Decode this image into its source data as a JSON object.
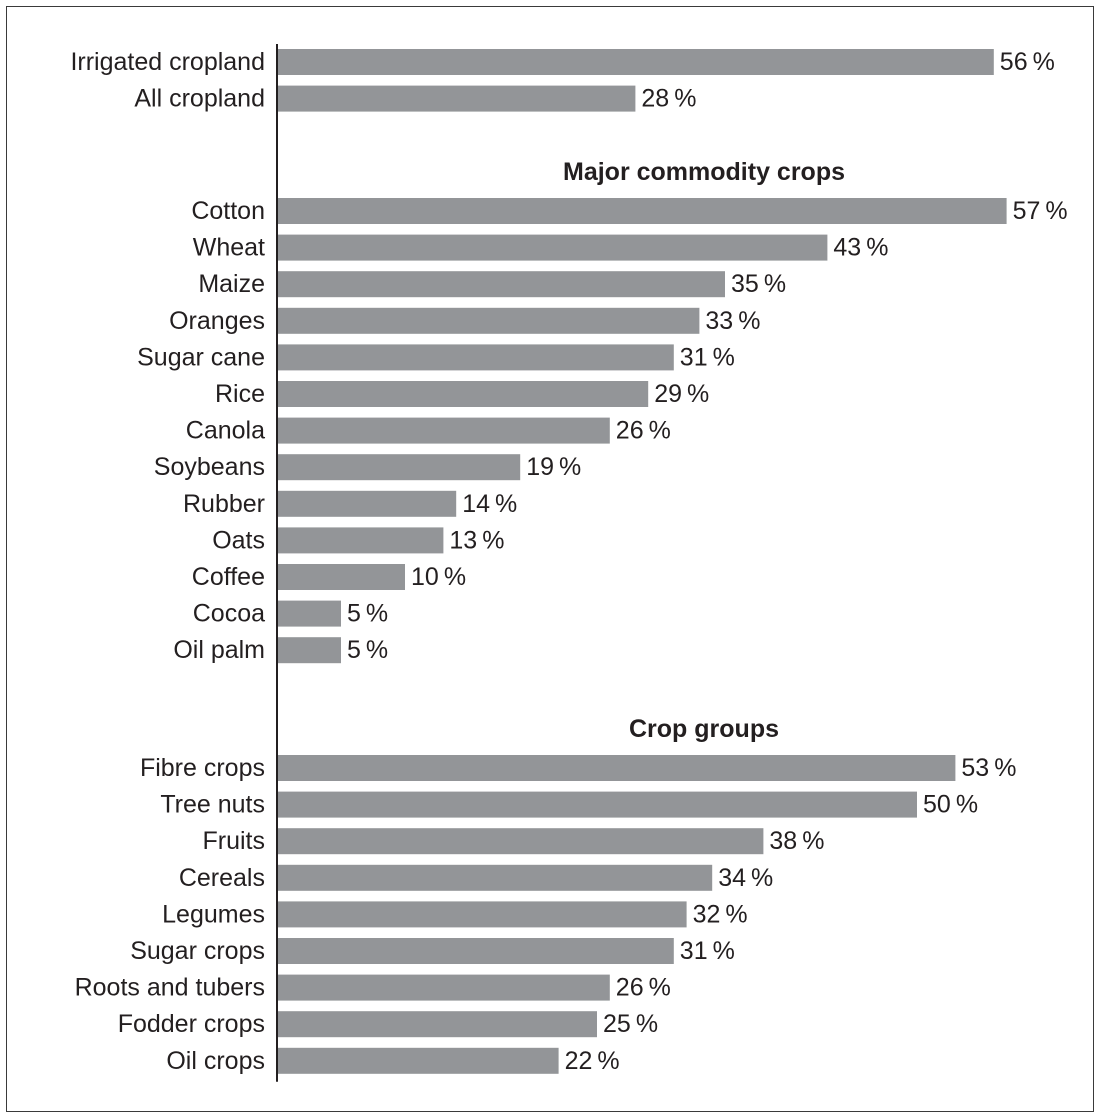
{
  "chart_data": {
    "type": "bar",
    "orientation": "horizontal",
    "title": "",
    "xlabel": "",
    "ylabel": "",
    "value_suffix": "%",
    "xlim": [
      0,
      57
    ],
    "grid": false,
    "colors": {
      "bar": "#939598",
      "text": "#231f20",
      "axis": "#231f20",
      "frame": "#3a3a3a"
    },
    "groups": [
      {
        "heading": "",
        "categories": [
          "Irrigated cropland",
          "All cropland"
        ],
        "values": [
          56,
          28
        ]
      },
      {
        "heading": "Major commodity crops",
        "categories": [
          "Cotton",
          "Wheat",
          "Maize",
          "Oranges",
          "Sugar cane",
          "Rice",
          "Canola",
          "Soybeans",
          "Rubber",
          "Oats",
          "Coffee",
          "Cocoa",
          "Oil palm"
        ],
        "values": [
          57,
          43,
          35,
          33,
          31,
          29,
          26,
          19,
          14,
          13,
          10,
          5,
          5
        ]
      },
      {
        "heading": "Crop groups",
        "categories": [
          "Fibre crops",
          "Tree nuts",
          "Fruits",
          "Cereals",
          "Legumes",
          "Sugar crops",
          "Roots and tubers",
          "Fodder crops",
          "Oil crops"
        ],
        "values": [
          53,
          50,
          38,
          34,
          32,
          31,
          26,
          25,
          22
        ]
      }
    ]
  }
}
